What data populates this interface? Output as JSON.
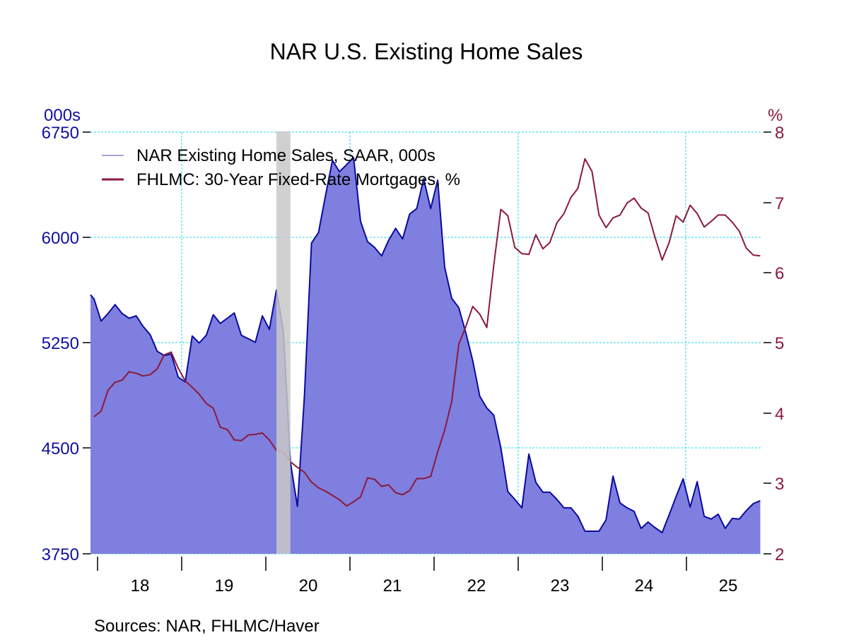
{
  "chart_data": {
    "type": "area+line",
    "title": "NAR U.S. Existing Home Sales",
    "source": "Sources:  NAR, FHLMC/Haver",
    "left_axis": {
      "unit": "000s",
      "ticks": [
        "6750",
        "6000",
        "5250",
        "4500",
        "3750"
      ],
      "range": [
        3750,
        6750
      ],
      "color": "#1010a0"
    },
    "right_axis": {
      "unit": "%",
      "ticks": [
        "8",
        "7",
        "6",
        "5",
        "4",
        "3",
        "2"
      ],
      "range": [
        2,
        8
      ],
      "color": "#8b1a3a"
    },
    "x_ticks": [
      "18",
      "19",
      "20",
      "21",
      "22",
      "23",
      "24",
      "25"
    ],
    "grid": true,
    "legend_position": "top-left",
    "recession_shading": {
      "start": "2020-02",
      "end": "2020-04",
      "color": "#cccccc"
    },
    "x": [
      "2017-12",
      "2018-01",
      "2018-02",
      "2018-03",
      "2018-04",
      "2018-05",
      "2018-06",
      "2018-07",
      "2018-08",
      "2018-09",
      "2018-10",
      "2018-11",
      "2018-12",
      "2019-01",
      "2019-02",
      "2019-03",
      "2019-04",
      "2019-05",
      "2019-06",
      "2019-07",
      "2019-08",
      "2019-09",
      "2019-10",
      "2019-11",
      "2019-12",
      "2020-01",
      "2020-02",
      "2020-03",
      "2020-04",
      "2020-05",
      "2020-06",
      "2020-07",
      "2020-08",
      "2020-09",
      "2020-10",
      "2020-11",
      "2020-12",
      "2021-01",
      "2021-02",
      "2021-03",
      "2021-04",
      "2021-05",
      "2021-06",
      "2021-07",
      "2021-08",
      "2021-09",
      "2021-10",
      "2021-11",
      "2021-12",
      "2022-01",
      "2022-02",
      "2022-03",
      "2022-04",
      "2022-05",
      "2022-06",
      "2022-07",
      "2022-08",
      "2022-09",
      "2022-10",
      "2022-11",
      "2022-12",
      "2023-01",
      "2023-02",
      "2023-03",
      "2023-04",
      "2023-05",
      "2023-06",
      "2023-07",
      "2023-08",
      "2023-09",
      "2023-10",
      "2023-11",
      "2023-12",
      "2024-01",
      "2024-02",
      "2024-03",
      "2024-04",
      "2024-05",
      "2024-06",
      "2024-07",
      "2024-08",
      "2024-09",
      "2024-10",
      "2024-11",
      "2024-12",
      "2025-01",
      "2025-02",
      "2025-03",
      "2025-04",
      "2025-05",
      "2025-06",
      "2025-07",
      "2025-08",
      "2025-09",
      "2025-10",
      "2025-11"
    ],
    "series": [
      {
        "name": "NAR Existing Home Sales, SAAR, 000s",
        "axis": "left",
        "style": "area",
        "line_color": "#0a0a9e",
        "fill_color": "#7f7fdf",
        "legend_color": "#8a8ac8",
        "values": [
          5563,
          5406,
          5460,
          5523,
          5460,
          5426,
          5443,
          5367,
          5309,
          5191,
          5161,
          5171,
          5007,
          4973,
          5300,
          5250,
          5305,
          5451,
          5389,
          5426,
          5463,
          5305,
          5280,
          5255,
          5443,
          5347,
          5627,
          5330,
          4400,
          4087,
          4872,
          5960,
          6035,
          6297,
          6549,
          6468,
          6518,
          6569,
          6116,
          5970,
          5930,
          5869,
          5980,
          6065,
          5990,
          6166,
          6206,
          6418,
          6206,
          6408,
          5789,
          5567,
          5502,
          5325,
          5124,
          4872,
          4787,
          4736,
          4505,
          4193,
          4137,
          4077,
          4460,
          4258,
          4188,
          4188,
          4137,
          4077,
          4077,
          4017,
          3911,
          3911,
          3911,
          3991,
          4303,
          4112,
          4077,
          4052,
          3931,
          3976,
          3936,
          3901,
          4027,
          4158,
          4283,
          4082,
          4263,
          4017,
          3997,
          4032,
          3931,
          4002,
          3997,
          4057,
          4107,
          4128
        ]
      },
      {
        "name": "FHLMC: 30-Year Fixed-Rate Mortgages, %",
        "axis": "right",
        "style": "line",
        "line_color": "#8b1a3a",
        "values": [
          3.95,
          4.03,
          4.33,
          4.44,
          4.47,
          4.59,
          4.57,
          4.53,
          4.55,
          4.63,
          4.83,
          4.87,
          4.64,
          4.46,
          4.37,
          4.27,
          4.14,
          4.07,
          3.8,
          3.77,
          3.62,
          3.61,
          3.69,
          3.7,
          3.72,
          3.62,
          3.47,
          3.45,
          3.31,
          3.23,
          3.16,
          3.02,
          2.94,
          2.89,
          2.83,
          2.77,
          2.68,
          2.74,
          2.81,
          3.08,
          3.06,
          2.96,
          2.98,
          2.87,
          2.84,
          2.9,
          3.07,
          3.07,
          3.1,
          3.45,
          3.76,
          4.17,
          4.98,
          5.23,
          5.52,
          5.41,
          5.22,
          6.11,
          6.9,
          6.81,
          6.36,
          6.27,
          6.26,
          6.54,
          6.34,
          6.43,
          6.71,
          6.84,
          7.07,
          7.2,
          7.62,
          7.44,
          6.82,
          6.64,
          6.78,
          6.82,
          6.99,
          7.06,
          6.92,
          6.85,
          6.5,
          6.18,
          6.43,
          6.81,
          6.72,
          6.96,
          6.84,
          6.65,
          6.73,
          6.82,
          6.82,
          6.72,
          6.59,
          6.35,
          6.25,
          6.24
        ]
      }
    ]
  }
}
